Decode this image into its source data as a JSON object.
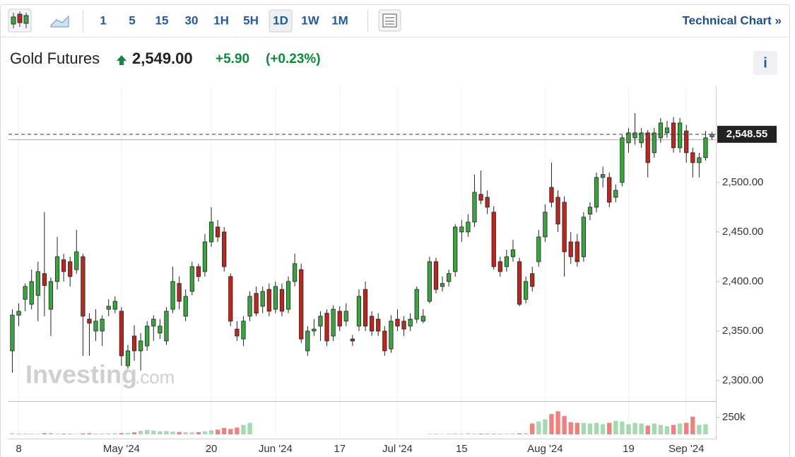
{
  "toolbar": {
    "intervals": [
      "1",
      "5",
      "15",
      "30",
      "1H",
      "5H",
      "1D",
      "1W",
      "1M"
    ],
    "active_interval": "1D",
    "link": "Technical Chart »"
  },
  "header": {
    "name": "Gold Futures",
    "price": "2,549.00",
    "change": "+5.90",
    "change_percent": "(+0.23%)",
    "info": "i"
  },
  "watermark": {
    "brand": "Investing",
    "suffix": ".com"
  },
  "chart_data": {
    "type": "candlestick",
    "up_color": "#3aa53f",
    "down_color": "#b8281f",
    "volume_up_color": "#a6d8b2",
    "volume_down_color": "#f07f7f",
    "ylim": [
      2280,
      2597
    ],
    "yticks": [
      {
        "value": 2300,
        "label": "2,300.00"
      },
      {
        "value": 2350,
        "label": "2,350.00"
      },
      {
        "value": 2400,
        "label": "2,400.00"
      },
      {
        "value": 2450,
        "label": "2,450.00"
      },
      {
        "value": 2500,
        "label": "2,500.00"
      }
    ],
    "xlim": [
      -0.6,
      109.6
    ],
    "xticks": [
      {
        "value": 1,
        "label": "8"
      },
      {
        "value": 17,
        "label": "May '24"
      },
      {
        "value": 31,
        "label": "20"
      },
      {
        "value": 41,
        "label": "Jun '24"
      },
      {
        "value": 51,
        "label": "17"
      },
      {
        "value": 60,
        "label": "Jul '24"
      },
      {
        "value": 70,
        "label": "15"
      },
      {
        "value": 83,
        "label": "Aug '24"
      },
      {
        "value": 96,
        "label": "19"
      },
      {
        "value": 105,
        "label": "Sep '24"
      }
    ],
    "grid": "x",
    "last_price": {
      "value": 2548.55,
      "label": "2,548.55"
    },
    "prev_close": 2543.1,
    "vlim": [
      0,
      480000
    ],
    "vticks": [
      {
        "value": 250000,
        "label": "250k"
      }
    ],
    "ohlc": [
      [
        2330,
        2372,
        2308,
        2366
      ],
      [
        2366,
        2378,
        2355,
        2370
      ],
      [
        2382,
        2398,
        2370,
        2395
      ],
      [
        2377,
        2412,
        2372,
        2400
      ],
      [
        2386,
        2420,
        2360,
        2410
      ],
      [
        2408,
        2470,
        2365,
        2396
      ],
      [
        2372,
        2404,
        2345,
        2400
      ],
      [
        2400,
        2445,
        2392,
        2425
      ],
      [
        2422,
        2428,
        2400,
        2410
      ],
      [
        2420,
        2425,
        2395,
        2405
      ],
      [
        2412,
        2452,
        2408,
        2430
      ],
      [
        2425,
        2428,
        2325,
        2365
      ],
      [
        2362,
        2368,
        2325,
        2358
      ],
      [
        2350,
        2372,
        2340,
        2360
      ],
      [
        2350,
        2366,
        2335,
        2362
      ],
      [
        2372,
        2382,
        2365,
        2375
      ],
      [
        2372,
        2385,
        2368,
        2380
      ],
      [
        2370,
        2374,
        2315,
        2325
      ],
      [
        2315,
        2336,
        2312,
        2330
      ],
      [
        2345,
        2356,
        2320,
        2330
      ],
      [
        2330,
        2348,
        2310,
        2340
      ],
      [
        2335,
        2360,
        2330,
        2355
      ],
      [
        2355,
        2366,
        2340,
        2362
      ],
      [
        2348,
        2362,
        2342,
        2355
      ],
      [
        2340,
        2374,
        2336,
        2370
      ],
      [
        2372,
        2415,
        2368,
        2400
      ],
      [
        2398,
        2405,
        2372,
        2380
      ],
      [
        2365,
        2392,
        2360,
        2385
      ],
      [
        2390,
        2420,
        2386,
        2415
      ],
      [
        2415,
        2418,
        2400,
        2405
      ],
      [
        2410,
        2448,
        2405,
        2440
      ],
      [
        2440,
        2475,
        2435,
        2460
      ],
      [
        2455,
        2462,
        2440,
        2445
      ],
      [
        2450,
        2455,
        2410,
        2415
      ],
      [
        2405,
        2408,
        2355,
        2360
      ],
      [
        2352,
        2360,
        2340,
        2345
      ],
      [
        2342,
        2365,
        2335,
        2360
      ],
      [
        2365,
        2390,
        2360,
        2385
      ],
      [
        2388,
        2395,
        2365,
        2368
      ],
      [
        2375,
        2395,
        2368,
        2390
      ],
      [
        2392,
        2398,
        2365,
        2370
      ],
      [
        2372,
        2400,
        2368,
        2395
      ],
      [
        2392,
        2398,
        2365,
        2370
      ],
      [
        2372,
        2405,
        2368,
        2400
      ],
      [
        2400,
        2428,
        2395,
        2418
      ],
      [
        2412,
        2418,
        2338,
        2342
      ],
      [
        2330,
        2355,
        2325,
        2350
      ],
      [
        2350,
        2362,
        2345,
        2352
      ],
      [
        2355,
        2370,
        2340,
        2365
      ],
      [
        2368,
        2372,
        2335,
        2340
      ],
      [
        2345,
        2376,
        2340,
        2372
      ],
      [
        2370,
        2375,
        2350,
        2355
      ],
      [
        2360,
        2378,
        2355,
        2370
      ],
      [
        2342,
        2346,
        2335,
        2340
      ],
      [
        2355,
        2392,
        2350,
        2385
      ],
      [
        2392,
        2400,
        2350,
        2355
      ],
      [
        2365,
        2370,
        2345,
        2350
      ],
      [
        2362,
        2368,
        2345,
        2350
      ],
      [
        2350,
        2355,
        2325,
        2330
      ],
      [
        2332,
        2366,
        2328,
        2360
      ],
      [
        2362,
        2372,
        2350,
        2355
      ],
      [
        2360,
        2365,
        2345,
        2352
      ],
      [
        2355,
        2368,
        2350,
        2362
      ],
      [
        2362,
        2395,
        2358,
        2392
      ],
      [
        2360,
        2372,
        2358,
        2365
      ],
      [
        2380,
        2425,
        2378,
        2420
      ],
      [
        2420,
        2424,
        2388,
        2392
      ],
      [
        2395,
        2405,
        2390,
        2398
      ],
      [
        2400,
        2412,
        2395,
        2408
      ],
      [
        2410,
        2458,
        2405,
        2455
      ],
      [
        2450,
        2462,
        2440,
        2455
      ],
      [
        2450,
        2468,
        2445,
        2460
      ],
      [
        2460,
        2508,
        2455,
        2490
      ],
      [
        2488,
        2512,
        2478,
        2482
      ],
      [
        2485,
        2492,
        2468,
        2475
      ],
      [
        2470,
        2476,
        2412,
        2415
      ],
      [
        2420,
        2425,
        2405,
        2410
      ],
      [
        2415,
        2432,
        2410,
        2425
      ],
      [
        2425,
        2442,
        2420,
        2432
      ],
      [
        2420,
        2424,
        2375,
        2377
      ],
      [
        2382,
        2405,
        2378,
        2400
      ],
      [
        2408,
        2415,
        2390,
        2395
      ],
      [
        2420,
        2452,
        2415,
        2445
      ],
      [
        2445,
        2478,
        2440,
        2470
      ],
      [
        2495,
        2520,
        2475,
        2480
      ],
      [
        2485,
        2492,
        2450,
        2458
      ],
      [
        2480,
        2486,
        2405,
        2430
      ],
      [
        2440,
        2450,
        2418,
        2425
      ],
      [
        2440,
        2448,
        2415,
        2420
      ],
      [
        2425,
        2470,
        2420,
        2465
      ],
      [
        2468,
        2480,
        2462,
        2475
      ],
      [
        2475,
        2510,
        2470,
        2505
      ],
      [
        2505,
        2516,
        2495,
        2508
      ],
      [
        2505,
        2510,
        2475,
        2480
      ],
      [
        2485,
        2498,
        2480,
        2492
      ],
      [
        2500,
        2548,
        2496,
        2545
      ],
      [
        2540,
        2555,
        2530,
        2550
      ],
      [
        2545,
        2570,
        2538,
        2550
      ],
      [
        2540,
        2555,
        2535,
        2550
      ],
      [
        2550,
        2553,
        2505,
        2520
      ],
      [
        2530,
        2555,
        2525,
        2550
      ],
      [
        2545,
        2565,
        2540,
        2560
      ],
      [
        2550,
        2562,
        2545,
        2555
      ],
      [
        2560,
        2566,
        2530,
        2535
      ],
      [
        2535,
        2565,
        2530,
        2560
      ],
      [
        2552,
        2558,
        2520,
        2530
      ],
      [
        2530,
        2535,
        2505,
        2520
      ],
      [
        2520,
        2530,
        2505,
        2525
      ],
      [
        2525,
        2552,
        2522,
        2545
      ],
      [
        2546,
        2551,
        2543,
        2548.55
      ]
    ],
    "volume": [
      15000,
      12000,
      10000,
      10000,
      8000,
      18000,
      20000,
      12000,
      10000,
      8000,
      6000,
      14000,
      16000,
      12000,
      12000,
      14000,
      16000,
      18000,
      22000,
      30000,
      50000,
      65000,
      55000,
      45000,
      50000,
      40000,
      35000,
      30000,
      28000,
      32000,
      45000,
      60000,
      70000,
      95000,
      80000,
      100000,
      140000,
      170000,
      null,
      null,
      null,
      null,
      null,
      null,
      null,
      null,
      null,
      null,
      null,
      null,
      null,
      null,
      null,
      null,
      null,
      null,
      null,
      null,
      null,
      null,
      null,
      null,
      null,
      null,
      null,
      8000,
      6000,
      5000,
      10000,
      12000,
      8000,
      14000,
      10000,
      12000,
      9000,
      8000,
      7000,
      10000,
      12000,
      15000,
      18000,
      160000,
      190000,
      220000,
      300000,
      340000,
      270000,
      180000,
      170000,
      170000,
      160000,
      170000,
      150000,
      170000,
      200000,
      190000,
      150000,
      170000,
      160000,
      130000,
      160000,
      140000,
      120000,
      140000,
      160000,
      170000,
      260000,
      140000,
      150000,
      null
    ]
  }
}
